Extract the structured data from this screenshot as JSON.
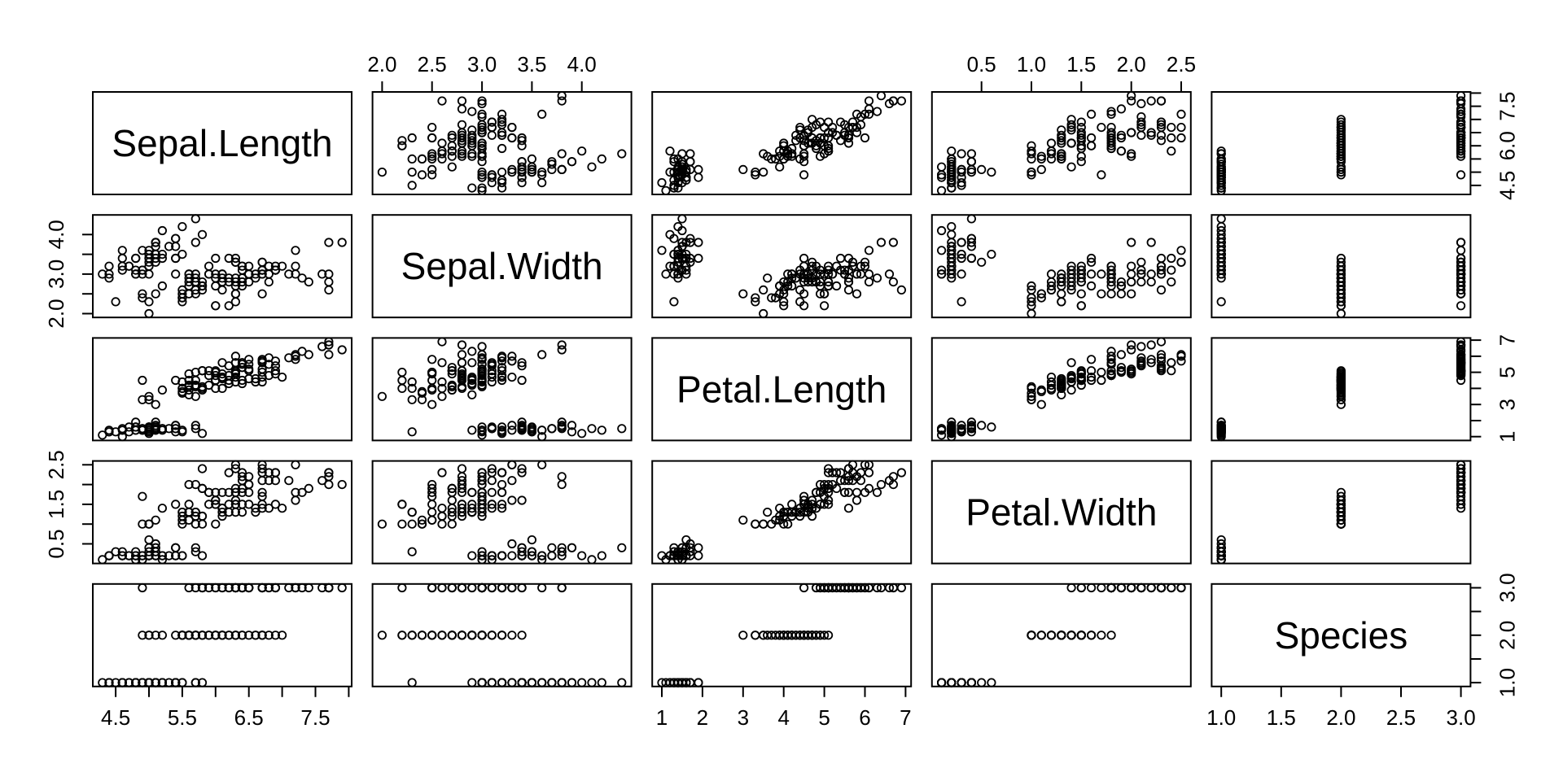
{
  "figure": {
    "background_color": "#ffffff",
    "foreground_color": "#000000"
  },
  "chart_data": {
    "type": "scatter",
    "subtype": "scatterplot-matrix",
    "title": "",
    "grid": false,
    "marker": {
      "symbol": "open-circle",
      "radius": 4.7,
      "stroke_color": "#000000"
    },
    "variables": [
      {
        "name": "Sepal.Length",
        "min": 4.156,
        "max": 8.044
      },
      {
        "name": "Sepal.Width",
        "min": 1.904,
        "max": 4.496
      },
      {
        "name": "Petal.Length",
        "min": 0.764,
        "max": 7.136
      },
      {
        "name": "Petal.Width",
        "min": 0.004,
        "max": 2.596
      },
      {
        "name": "Species",
        "min": 0.92,
        "max": 3.08
      }
    ],
    "axes": [
      {
        "edge": "bottom",
        "index": 0,
        "ticks": [
          4.5,
          5.0,
          5.5,
          6.0,
          6.5,
          7.0,
          7.5,
          8.0
        ],
        "labels": [
          {
            "v": 4.5,
            "t": "4.5"
          },
          {
            "v": 5.5,
            "t": "5.5"
          },
          {
            "v": 6.5,
            "t": "6.5"
          },
          {
            "v": 7.5,
            "t": "7.5"
          }
        ]
      },
      {
        "edge": "top",
        "index": 1,
        "ticks": [
          2.0,
          2.5,
          3.0,
          3.5,
          4.0
        ],
        "labels": [
          {
            "v": 2.0,
            "t": "2.0"
          },
          {
            "v": 2.5,
            "t": "2.5"
          },
          {
            "v": 3.0,
            "t": "3.0"
          },
          {
            "v": 3.5,
            "t": "3.5"
          },
          {
            "v": 4.0,
            "t": "4.0"
          }
        ]
      },
      {
        "edge": "bottom",
        "index": 2,
        "ticks": [
          1,
          2,
          3,
          4,
          5,
          6,
          7
        ],
        "labels": [
          {
            "v": 1,
            "t": "1"
          },
          {
            "v": 2,
            "t": "2"
          },
          {
            "v": 3,
            "t": "3"
          },
          {
            "v": 4,
            "t": "4"
          },
          {
            "v": 5,
            "t": "5"
          },
          {
            "v": 6,
            "t": "6"
          },
          {
            "v": 7,
            "t": "7"
          }
        ]
      },
      {
        "edge": "top",
        "index": 3,
        "ticks": [
          0.5,
          1.0,
          1.5,
          2.0,
          2.5
        ],
        "labels": [
          {
            "v": 0.5,
            "t": "0.5"
          },
          {
            "v": 1.0,
            "t": "1.0"
          },
          {
            "v": 1.5,
            "t": "1.5"
          },
          {
            "v": 2.0,
            "t": "2.0"
          },
          {
            "v": 2.5,
            "t": "2.5"
          }
        ]
      },
      {
        "edge": "bottom",
        "index": 4,
        "ticks": [
          1.0,
          1.5,
          2.0,
          2.5,
          3.0
        ],
        "labels": [
          {
            "v": 1.0,
            "t": "1.0"
          },
          {
            "v": 1.5,
            "t": "1.5"
          },
          {
            "v": 2.0,
            "t": "2.0"
          },
          {
            "v": 2.5,
            "t": "2.5"
          },
          {
            "v": 3.0,
            "t": "3.0"
          }
        ]
      },
      {
        "edge": "right",
        "index": 0,
        "ticks": [
          4.5,
          5.0,
          5.5,
          6.0,
          6.5,
          7.0,
          7.5,
          8.0
        ],
        "labels": [
          {
            "v": 4.5,
            "t": "4.5"
          },
          {
            "v": 6.0,
            "t": "6.0"
          },
          {
            "v": 7.5,
            "t": "7.5"
          }
        ]
      },
      {
        "edge": "left",
        "index": 1,
        "ticks": [
          2.0,
          2.5,
          3.0,
          3.5,
          4.0
        ],
        "labels": [
          {
            "v": 2.0,
            "t": "2.0"
          },
          {
            "v": 3.0,
            "t": "3.0"
          },
          {
            "v": 4.0,
            "t": "4.0"
          }
        ]
      },
      {
        "edge": "right",
        "index": 2,
        "ticks": [
          1,
          2,
          3,
          4,
          5,
          6,
          7
        ],
        "labels": [
          {
            "v": 1,
            "t": "1"
          },
          {
            "v": 3,
            "t": "3"
          },
          {
            "v": 5,
            "t": "5"
          },
          {
            "v": 7,
            "t": "7"
          }
        ]
      },
      {
        "edge": "left",
        "index": 3,
        "ticks": [
          0.5,
          1.0,
          1.5,
          2.0,
          2.5
        ],
        "labels": [
          {
            "v": 0.5,
            "t": "0.5"
          },
          {
            "v": 1.5,
            "t": "1.5"
          },
          {
            "v": 2.5,
            "t": "2.5"
          }
        ]
      },
      {
        "edge": "right",
        "index": 4,
        "ticks": [
          1.0,
          1.5,
          2.0,
          2.5,
          3.0
        ],
        "labels": [
          {
            "v": 1.0,
            "t": "1.0"
          },
          {
            "v": 2.0,
            "t": "2.0"
          },
          {
            "v": 3.0,
            "t": "3.0"
          }
        ]
      }
    ],
    "points": {
      "Sepal.Length": [
        5.1,
        4.9,
        4.7,
        4.6,
        5.0,
        5.4,
        4.6,
        5.0,
        4.4,
        4.9,
        5.4,
        4.8,
        4.8,
        4.3,
        5.8,
        5.7,
        5.4,
        5.1,
        5.7,
        5.1,
        5.4,
        5.1,
        4.6,
        5.1,
        4.8,
        5.0,
        5.0,
        5.2,
        5.2,
        4.7,
        4.8,
        5.4,
        5.2,
        5.5,
        4.9,
        5.0,
        5.5,
        4.9,
        4.4,
        5.1,
        5.0,
        4.5,
        4.4,
        5.0,
        5.1,
        4.8,
        5.1,
        4.6,
        5.3,
        5.0,
        7.0,
        6.4,
        6.9,
        5.5,
        6.5,
        5.7,
        6.3,
        4.9,
        6.6,
        5.2,
        5.0,
        5.9,
        6.0,
        6.1,
        5.6,
        6.7,
        5.6,
        5.8,
        6.2,
        5.6,
        5.9,
        6.1,
        6.3,
        6.1,
        6.4,
        6.6,
        6.8,
        6.7,
        6.0,
        5.7,
        5.5,
        5.5,
        5.8,
        6.0,
        5.4,
        6.0,
        6.7,
        6.3,
        5.6,
        5.5,
        5.5,
        6.1,
        5.8,
        5.0,
        5.6,
        5.7,
        5.7,
        6.2,
        5.1,
        5.7,
        6.3,
        5.8,
        7.1,
        6.3,
        6.5,
        7.6,
        4.9,
        7.3,
        6.7,
        7.2,
        6.5,
        6.4,
        6.8,
        5.7,
        5.8,
        6.4,
        6.5,
        7.7,
        7.7,
        6.0,
        6.9,
        5.6,
        7.7,
        6.3,
        6.7,
        7.2,
        6.2,
        6.1,
        6.4,
        7.2,
        7.4,
        7.9,
        6.4,
        6.3,
        6.1,
        7.7,
        6.3,
        6.4,
        6.0,
        6.9,
        6.7,
        6.9,
        5.8,
        6.8,
        6.7,
        6.7,
        6.3,
        6.5,
        6.2,
        5.9
      ],
      "Sepal.Width": [
        3.5,
        3.0,
        3.2,
        3.1,
        3.6,
        3.9,
        3.4,
        3.4,
        2.9,
        3.1,
        3.7,
        3.4,
        3.0,
        3.0,
        4.0,
        4.4,
        3.9,
        3.5,
        3.8,
        3.8,
        3.4,
        3.7,
        3.6,
        3.3,
        3.4,
        3.0,
        3.4,
        3.5,
        3.4,
        3.2,
        3.1,
        3.4,
        4.1,
        4.2,
        3.1,
        3.2,
        3.5,
        3.6,
        3.0,
        3.4,
        3.5,
        2.3,
        3.2,
        3.5,
        3.8,
        3.0,
        3.8,
        3.2,
        3.7,
        3.3,
        3.2,
        3.2,
        3.1,
        2.3,
        2.8,
        2.8,
        3.3,
        2.4,
        2.9,
        2.7,
        2.0,
        3.0,
        2.2,
        2.9,
        2.9,
        3.1,
        3.0,
        2.7,
        2.2,
        2.5,
        3.2,
        2.8,
        2.5,
        2.8,
        2.9,
        3.0,
        2.8,
        3.0,
        2.9,
        2.6,
        2.4,
        2.4,
        2.7,
        2.7,
        3.0,
        3.4,
        3.1,
        2.3,
        3.0,
        2.5,
        2.6,
        3.0,
        2.6,
        2.3,
        2.7,
        3.0,
        2.9,
        2.9,
        2.5,
        2.8,
        3.3,
        2.7,
        3.0,
        2.9,
        3.0,
        3.0,
        2.5,
        2.9,
        2.5,
        3.6,
        3.2,
        2.7,
        3.0,
        2.5,
        2.8,
        3.2,
        3.0,
        3.8,
        2.6,
        2.2,
        3.2,
        2.8,
        2.8,
        2.7,
        3.3,
        3.2,
        2.8,
        3.0,
        2.8,
        3.0,
        2.8,
        3.8,
        2.8,
        2.8,
        2.6,
        3.0,
        3.4,
        3.1,
        3.0,
        3.1,
        3.1,
        3.1,
        2.7,
        3.2,
        3.3,
        3.0,
        2.5,
        3.0,
        3.4,
        3.0
      ],
      "Petal.Length": [
        1.4,
        1.4,
        1.3,
        1.5,
        1.4,
        1.7,
        1.4,
        1.5,
        1.4,
        1.5,
        1.5,
        1.6,
        1.4,
        1.1,
        1.2,
        1.5,
        1.3,
        1.4,
        1.7,
        1.5,
        1.7,
        1.5,
        1.0,
        1.7,
        1.9,
        1.6,
        1.6,
        1.5,
        1.4,
        1.6,
        1.6,
        1.5,
        1.5,
        1.4,
        1.5,
        1.2,
        1.3,
        1.4,
        1.3,
        1.5,
        1.3,
        1.3,
        1.3,
        1.6,
        1.9,
        1.4,
        1.6,
        1.4,
        1.5,
        1.4,
        4.7,
        4.5,
        4.9,
        4.0,
        4.6,
        4.5,
        4.7,
        3.3,
        4.6,
        3.9,
        3.5,
        4.2,
        4.0,
        4.7,
        3.6,
        4.4,
        4.5,
        4.1,
        4.5,
        3.9,
        4.8,
        4.0,
        4.9,
        4.7,
        4.3,
        4.4,
        4.8,
        5.0,
        4.5,
        3.5,
        3.8,
        3.7,
        3.9,
        5.1,
        4.5,
        4.5,
        4.7,
        4.4,
        4.1,
        4.0,
        4.4,
        4.6,
        4.0,
        3.3,
        4.2,
        4.2,
        4.2,
        4.3,
        3.0,
        4.1,
        6.0,
        5.1,
        5.9,
        5.6,
        5.8,
        6.6,
        4.5,
        6.3,
        5.8,
        6.1,
        5.1,
        5.3,
        5.5,
        5.0,
        5.1,
        5.3,
        5.5,
        6.7,
        6.9,
        5.0,
        5.7,
        4.9,
        6.7,
        4.9,
        5.7,
        6.0,
        4.8,
        4.9,
        5.6,
        5.8,
        6.1,
        6.4,
        5.6,
        5.1,
        5.6,
        6.1,
        5.6,
        5.5,
        4.8,
        5.4,
        5.6,
        5.1,
        5.1,
        5.9,
        5.7,
        5.2,
        5.0,
        5.2,
        5.4,
        5.1
      ],
      "Petal.Width": [
        0.2,
        0.2,
        0.2,
        0.2,
        0.2,
        0.4,
        0.3,
        0.2,
        0.2,
        0.1,
        0.2,
        0.2,
        0.1,
        0.1,
        0.2,
        0.4,
        0.4,
        0.3,
        0.3,
        0.3,
        0.2,
        0.4,
        0.2,
        0.5,
        0.2,
        0.2,
        0.4,
        0.2,
        0.2,
        0.2,
        0.2,
        0.4,
        0.1,
        0.2,
        0.2,
        0.2,
        0.2,
        0.1,
        0.2,
        0.2,
        0.3,
        0.3,
        0.2,
        0.6,
        0.4,
        0.3,
        0.2,
        0.2,
        0.2,
        0.2,
        1.4,
        1.5,
        1.5,
        1.3,
        1.5,
        1.3,
        1.6,
        1.0,
        1.3,
        1.4,
        1.0,
        1.5,
        1.0,
        1.4,
        1.3,
        1.4,
        1.5,
        1.0,
        1.5,
        1.1,
        1.8,
        1.3,
        1.5,
        1.2,
        1.3,
        1.4,
        1.4,
        1.7,
        1.5,
        1.0,
        1.1,
        1.0,
        1.2,
        1.6,
        1.5,
        1.6,
        1.5,
        1.3,
        1.3,
        1.3,
        1.2,
        1.4,
        1.2,
        1.0,
        1.3,
        1.2,
        1.3,
        1.3,
        1.1,
        1.3,
        2.5,
        1.9,
        2.1,
        1.8,
        2.2,
        2.1,
        1.7,
        1.8,
        1.8,
        2.5,
        2.0,
        1.9,
        2.1,
        2.0,
        2.4,
        2.3,
        1.8,
        2.2,
        2.3,
        1.5,
        2.3,
        2.0,
        2.0,
        1.8,
        2.1,
        1.8,
        1.8,
        1.8,
        2.1,
        1.6,
        1.9,
        2.0,
        2.2,
        1.5,
        1.4,
        2.3,
        2.4,
        1.8,
        1.8,
        2.1,
        2.4,
        2.3,
        1.9,
        2.3,
        2.5,
        2.3,
        1.9,
        2.0,
        2.3,
        1.8
      ],
      "Species": [
        1,
        1,
        1,
        1,
        1,
        1,
        1,
        1,
        1,
        1,
        1,
        1,
        1,
        1,
        1,
        1,
        1,
        1,
        1,
        1,
        1,
        1,
        1,
        1,
        1,
        1,
        1,
        1,
        1,
        1,
        1,
        1,
        1,
        1,
        1,
        1,
        1,
        1,
        1,
        1,
        1,
        1,
        1,
        1,
        1,
        1,
        1,
        1,
        1,
        1,
        2,
        2,
        2,
        2,
        2,
        2,
        2,
        2,
        2,
        2,
        2,
        2,
        2,
        2,
        2,
        2,
        2,
        2,
        2,
        2,
        2,
        2,
        2,
        2,
        2,
        2,
        2,
        2,
        2,
        2,
        2,
        2,
        2,
        2,
        2,
        2,
        2,
        2,
        2,
        2,
        2,
        2,
        2,
        2,
        2,
        2,
        2,
        2,
        2,
        2,
        3,
        3,
        3,
        3,
        3,
        3,
        3,
        3,
        3,
        3,
        3,
        3,
        3,
        3,
        3,
        3,
        3,
        3,
        3,
        3,
        3,
        3,
        3,
        3,
        3,
        3,
        3,
        3,
        3,
        3,
        3,
        3,
        3,
        3,
        3,
        3,
        3,
        3,
        3,
        3,
        3,
        3,
        3,
        3,
        3,
        3,
        3,
        3,
        3,
        3
      ]
    }
  }
}
